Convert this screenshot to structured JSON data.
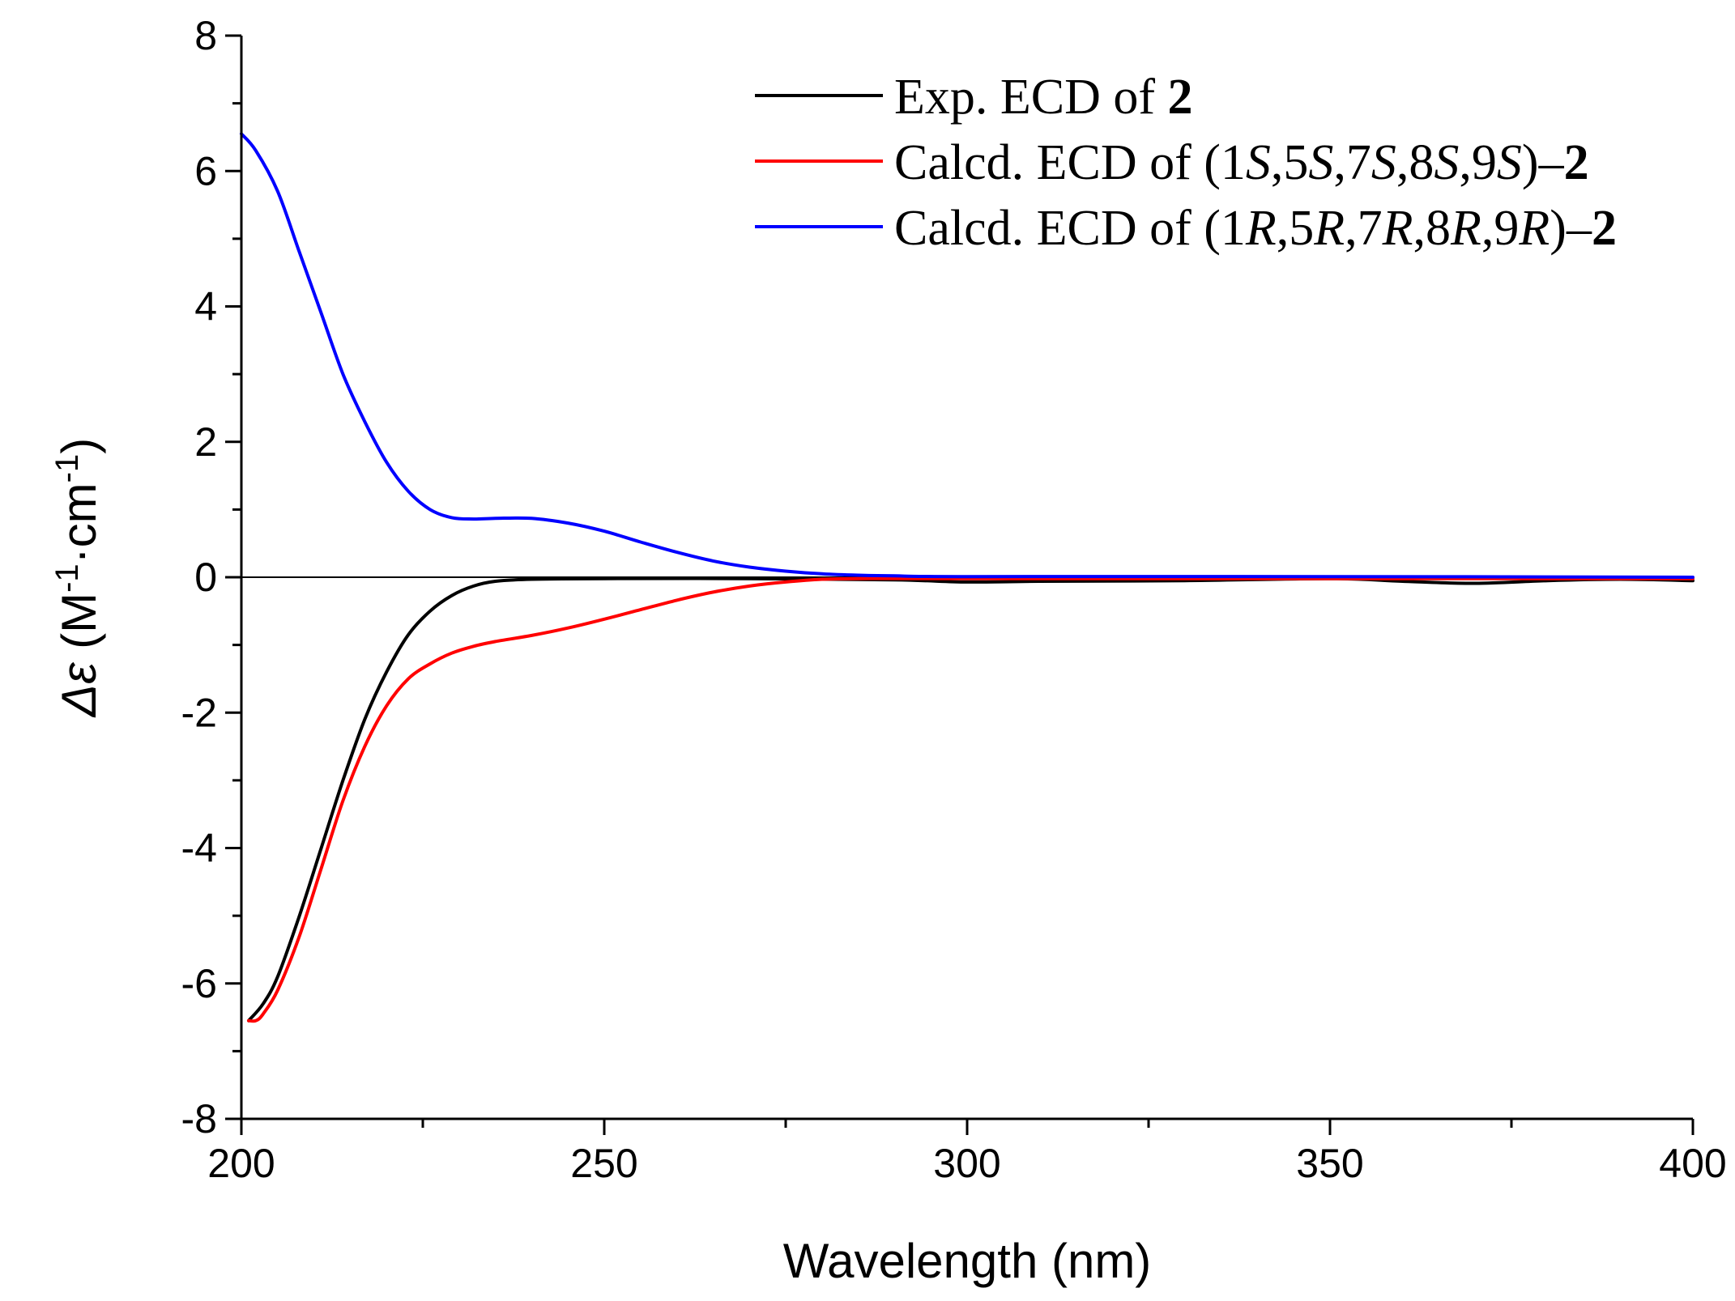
{
  "chart_data": {
    "type": "line",
    "title": "",
    "xlabel": "Wavelength (nm)",
    "ylabel": {
      "symbol": "Δε",
      "unit_open": " (M",
      "sup1": "-1",
      "unit_mid": "·cm",
      "sup2": "-1",
      "unit_close": ")"
    },
    "xlim": [
      200,
      400
    ],
    "ylim": [
      -8,
      8
    ],
    "x_ticks": [
      200,
      250,
      300,
      350,
      400
    ],
    "y_ticks": [
      -8,
      -6,
      -4,
      -2,
      0,
      2,
      4,
      6,
      8
    ],
    "x_minor_step": 25,
    "y_minor_step": 1,
    "zero_line": true,
    "legend_position": "top-right",
    "series": [
      {
        "name": "Exp. ECD of 2",
        "legend": [
          {
            "text": "Exp. ECD of ",
            "style": "normal"
          },
          {
            "text": "2",
            "style": "bold"
          }
        ],
        "color": "#000000",
        "points": [
          [
            201,
            -6.55
          ],
          [
            203,
            -6.3
          ],
          [
            205,
            -5.9
          ],
          [
            208,
            -5.0
          ],
          [
            211,
            -4.0
          ],
          [
            214,
            -3.0
          ],
          [
            217,
            -2.1
          ],
          [
            220,
            -1.4
          ],
          [
            223,
            -0.85
          ],
          [
            226,
            -0.5
          ],
          [
            229,
            -0.27
          ],
          [
            232,
            -0.13
          ],
          [
            235,
            -0.06
          ],
          [
            240,
            -0.03
          ],
          [
            250,
            -0.02
          ],
          [
            270,
            -0.02
          ],
          [
            290,
            -0.04
          ],
          [
            300,
            -0.07
          ],
          [
            310,
            -0.06
          ],
          [
            330,
            -0.05
          ],
          [
            350,
            -0.02
          ],
          [
            360,
            -0.06
          ],
          [
            370,
            -0.09
          ],
          [
            380,
            -0.05
          ],
          [
            390,
            -0.03
          ],
          [
            400,
            -0.05
          ]
        ]
      },
      {
        "name": "Calcd. ECD of (1S,5S,7S,8S,9S)-2",
        "legend": [
          {
            "text": "Calcd. ECD of (1",
            "style": "normal"
          },
          {
            "text": "S",
            "style": "italic"
          },
          {
            "text": ",5",
            "style": "normal"
          },
          {
            "text": "S",
            "style": "italic"
          },
          {
            "text": ",7",
            "style": "normal"
          },
          {
            "text": "S",
            "style": "italic"
          },
          {
            "text": ",8",
            "style": "normal"
          },
          {
            "text": "S",
            "style": "italic"
          },
          {
            "text": ",9",
            "style": "normal"
          },
          {
            "text": "S",
            "style": "italic"
          },
          {
            "text": ")–",
            "style": "normal"
          },
          {
            "text": "2",
            "style": "bold"
          }
        ],
        "color": "#ff0000",
        "points": [
          [
            201,
            -6.55
          ],
          [
            202,
            -6.55
          ],
          [
            203,
            -6.45
          ],
          [
            205,
            -6.1
          ],
          [
            208,
            -5.3
          ],
          [
            211,
            -4.3
          ],
          [
            214,
            -3.3
          ],
          [
            217,
            -2.5
          ],
          [
            220,
            -1.9
          ],
          [
            223,
            -1.5
          ],
          [
            226,
            -1.28
          ],
          [
            229,
            -1.12
          ],
          [
            232,
            -1.02
          ],
          [
            235,
            -0.95
          ],
          [
            240,
            -0.86
          ],
          [
            245,
            -0.75
          ],
          [
            250,
            -0.62
          ],
          [
            255,
            -0.48
          ],
          [
            260,
            -0.34
          ],
          [
            265,
            -0.22
          ],
          [
            270,
            -0.13
          ],
          [
            275,
            -0.07
          ],
          [
            280,
            -0.03
          ],
          [
            285,
            -0.02
          ],
          [
            300,
            -0.02
          ],
          [
            350,
            -0.02
          ],
          [
            400,
            -0.02
          ]
        ]
      },
      {
        "name": "Calcd. ECD of (1R,5R,7R,8R,9R)-2",
        "legend": [
          {
            "text": "Calcd. ECD of (1",
            "style": "normal"
          },
          {
            "text": "R",
            "style": "italic"
          },
          {
            "text": ",5",
            "style": "normal"
          },
          {
            "text": "R",
            "style": "italic"
          },
          {
            "text": ",7",
            "style": "normal"
          },
          {
            "text": "R",
            "style": "italic"
          },
          {
            "text": ",8",
            "style": "normal"
          },
          {
            "text": "R",
            "style": "italic"
          },
          {
            "text": ",9",
            "style": "normal"
          },
          {
            "text": "R",
            "style": "italic"
          },
          {
            "text": ")–",
            "style": "normal"
          },
          {
            "text": "2",
            "style": "bold"
          }
        ],
        "color": "#0000ff",
        "points": [
          [
            200,
            6.55
          ],
          [
            202,
            6.3
          ],
          [
            205,
            5.7
          ],
          [
            208,
            4.8
          ],
          [
            211,
            3.9
          ],
          [
            214,
            3.0
          ],
          [
            217,
            2.3
          ],
          [
            220,
            1.7
          ],
          [
            223,
            1.27
          ],
          [
            226,
            1.0
          ],
          [
            229,
            0.88
          ],
          [
            232,
            0.86
          ],
          [
            235,
            0.87
          ],
          [
            240,
            0.87
          ],
          [
            245,
            0.8
          ],
          [
            250,
            0.68
          ],
          [
            255,
            0.52
          ],
          [
            260,
            0.37
          ],
          [
            265,
            0.24
          ],
          [
            270,
            0.15
          ],
          [
            275,
            0.09
          ],
          [
            280,
            0.05
          ],
          [
            285,
            0.03
          ],
          [
            290,
            0.02
          ],
          [
            300,
            0.01
          ],
          [
            350,
            0.01
          ],
          [
            400,
            0.0
          ]
        ]
      }
    ]
  }
}
